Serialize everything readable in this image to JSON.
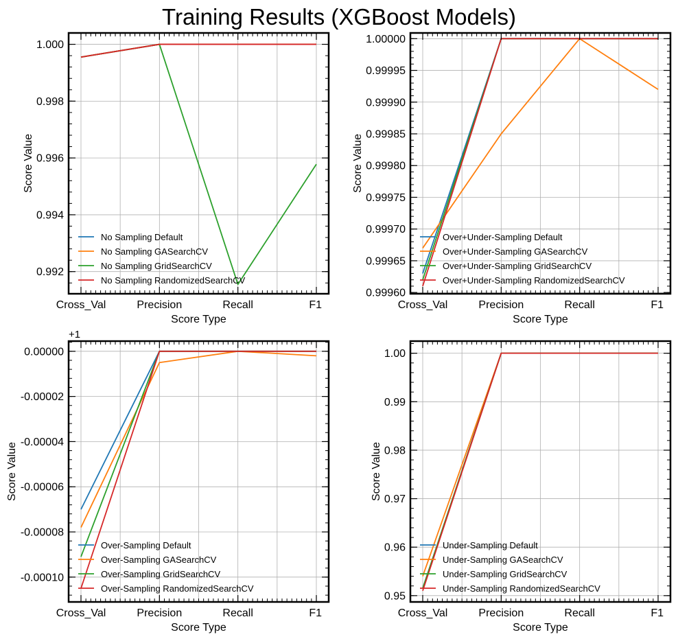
{
  "figure": {
    "title": "Training Results (XGBoost Models)"
  },
  "colors": {
    "default": "#1f77b4",
    "ga": "#ff7f0e",
    "grid": "#2ca02c",
    "random": "#d62728"
  },
  "chart_data": [
    {
      "type": "line",
      "xlabel": "Score Type",
      "ylabel": "Score Value",
      "categories": [
        "Cross_Val",
        "Precision",
        "Recall",
        "F1"
      ],
      "ylim": [
        0.99122,
        1.0004
      ],
      "yticks": [
        0.992,
        0.994,
        0.996,
        0.998,
        1.0
      ],
      "ytick_labels": [
        "0.992",
        "0.994",
        "0.996",
        "0.998",
        "1.000"
      ],
      "offset_text": "",
      "legend_loc": "lower-left",
      "grid": true,
      "series": [
        {
          "name": "No Sampling Default",
          "color": "#1f77b4",
          "values": [
            0.99955,
            1.0,
            1.0,
            1.0
          ]
        },
        {
          "name": "No Sampling GASearchCV",
          "color": "#ff7f0e",
          "values": [
            0.99955,
            1.0,
            1.0,
            1.0
          ]
        },
        {
          "name": "No Sampling GridSearchCV",
          "color": "#2ca02c",
          "values": [
            0.99955,
            1.0,
            0.99155,
            0.99578
          ]
        },
        {
          "name": "No Sampling RandomizedSearchCV",
          "color": "#d62728",
          "values": [
            0.99955,
            1.0,
            1.0,
            1.0
          ]
        }
      ]
    },
    {
      "type": "line",
      "xlabel": "Score Type",
      "ylabel": "Score Value",
      "categories": [
        "Cross_Val",
        "Precision",
        "Recall",
        "F1"
      ],
      "ylim": [
        0.999598,
        1.000009
      ],
      "yticks": [
        0.9996,
        0.99965,
        0.9997,
        0.99975,
        0.9998,
        0.99985,
        0.9999,
        0.99995,
        1.0
      ],
      "ytick_labels": [
        "0.99960",
        "0.99965",
        "0.99970",
        "0.99975",
        "0.99980",
        "0.99985",
        "0.99990",
        "0.99995",
        "1.00000"
      ],
      "offset_text": "",
      "legend_loc": "lower-left",
      "grid": true,
      "series": [
        {
          "name": "Over+Under-Sampling Default",
          "color": "#1f77b4",
          "values": [
            0.99963,
            1.0,
            1.0,
            1.0
          ]
        },
        {
          "name": "Over+Under-Sampling GASearchCV",
          "color": "#ff7f0e",
          "values": [
            0.99967,
            0.99985,
            1.0,
            0.99992
          ]
        },
        {
          "name": "Over+Under-Sampling GridSearchCV",
          "color": "#2ca02c",
          "values": [
            0.99962,
            1.0,
            1.0,
            1.0
          ]
        },
        {
          "name": "Over+Under-Sampling RandomizedSearchCV",
          "color": "#d62728",
          "values": [
            0.99961,
            1.0,
            1.0,
            1.0
          ]
        }
      ]
    },
    {
      "type": "line",
      "xlabel": "Score Type",
      "ylabel": "Score Value",
      "categories": [
        "Cross_Val",
        "Precision",
        "Recall",
        "F1"
      ],
      "ylim": [
        -0.000111,
        4.5e-06
      ],
      "yticks": [
        -0.0001,
        -8e-05,
        -6e-05,
        -4e-05,
        -2e-05,
        0.0
      ],
      "ytick_labels": [
        "-0.00010",
        "-0.00008",
        "-0.00006",
        "-0.00004",
        "-0.00002",
        "0.00000"
      ],
      "offset_text": "+1",
      "legend_loc": "lower-left",
      "grid": true,
      "series": [
        {
          "name": "Over-Sampling Default",
          "color": "#1f77b4",
          "values": [
            -7e-05,
            0.0,
            0.0,
            0.0
          ]
        },
        {
          "name": "Over-Sampling GASearchCV",
          "color": "#ff7f0e",
          "values": [
            -7.8e-05,
            -5e-06,
            0.0,
            -2e-06
          ]
        },
        {
          "name": "Over-Sampling GridSearchCV",
          "color": "#2ca02c",
          "values": [
            -9.1e-05,
            0.0,
            0.0,
            0.0
          ]
        },
        {
          "name": "Over-Sampling RandomizedSearchCV",
          "color": "#d62728",
          "values": [
            -0.000105,
            0.0,
            0.0,
            0.0
          ]
        }
      ]
    },
    {
      "type": "line",
      "xlabel": "Score Type",
      "ylabel": "Score Value",
      "categories": [
        "Cross_Val",
        "Precision",
        "Recall",
        "F1"
      ],
      "ylim": [
        0.9487,
        1.0025
      ],
      "yticks": [
        0.95,
        0.96,
        0.97,
        0.98,
        0.99,
        1.0
      ],
      "ytick_labels": [
        "0.95",
        "0.96",
        "0.97",
        "0.98",
        "0.99",
        "1.00"
      ],
      "offset_text": "",
      "legend_loc": "lower-left",
      "grid": true,
      "series": [
        {
          "name": "Under-Sampling Default",
          "color": "#1f77b4",
          "values": [
            0.9515,
            1.0,
            1.0,
            1.0
          ]
        },
        {
          "name": "Under-Sampling GASearchCV",
          "color": "#ff7f0e",
          "values": [
            0.954,
            1.0,
            1.0,
            1.0
          ]
        },
        {
          "name": "Under-Sampling GridSearchCV",
          "color": "#2ca02c",
          "values": [
            0.9515,
            1.0,
            1.0,
            1.0
          ]
        },
        {
          "name": "Under-Sampling RandomizedSearchCV",
          "color": "#d62728",
          "values": [
            0.951,
            1.0,
            1.0,
            1.0
          ]
        }
      ]
    }
  ]
}
